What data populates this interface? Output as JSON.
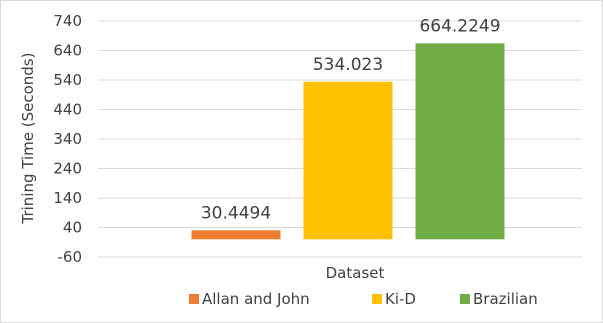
{
  "chart_data": {
    "type": "bar",
    "categories": [
      "Allan  and John",
      "Ki-D",
      "Brazilian"
    ],
    "series": [
      {
        "name": "Allan  and John",
        "value": 30.4494,
        "label": "30.4494",
        "color": "#ED7D31"
      },
      {
        "name": "Ki-D",
        "value": 534.023,
        "label": "534.023",
        "color": "#FFC000"
      },
      {
        "name": "Brazilian",
        "value": 664.2249,
        "label": "664.2249",
        "color": "#70AD47"
      }
    ],
    "baseline": 0,
    "ylim": [
      -60,
      740
    ],
    "yticks": [
      "740",
      "640",
      "540",
      "440",
      "340",
      "240",
      "140",
      "40",
      "-60"
    ],
    "ytick_values": [
      740,
      640,
      540,
      440,
      340,
      240,
      140,
      40,
      -60
    ],
    "xlabel": "Dataset",
    "ylabel": "Trining Time (Seconds)",
    "grid": true,
    "legend": "bottom"
  }
}
